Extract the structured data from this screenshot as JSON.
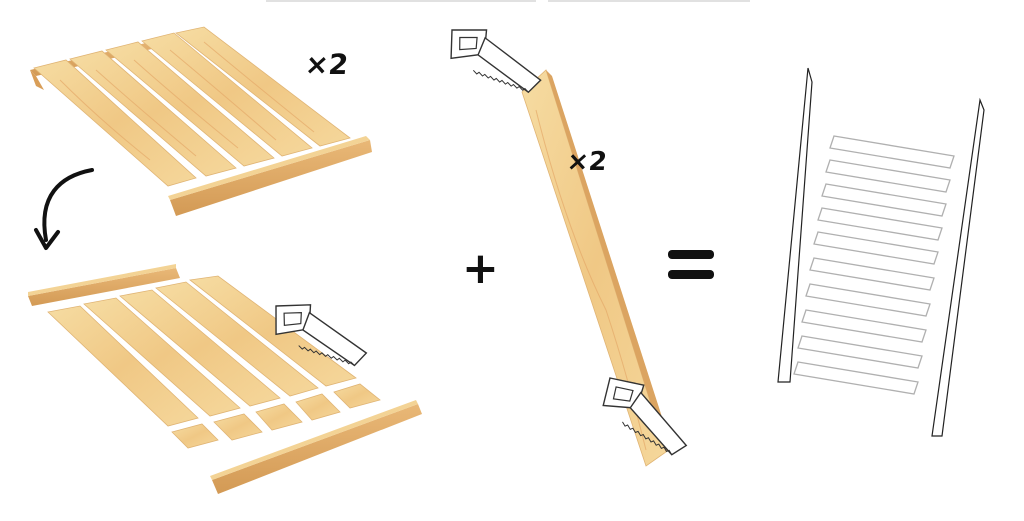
{
  "figure": {
    "multiplier_top": "×2",
    "multiplier_right": "×2",
    "plus_sign": "+",
    "equals_sign": "="
  },
  "colors": {
    "wood": "#f2cf8e",
    "wood_grain": "#e3a96a",
    "wood_edge": "#d8a35f",
    "ink": "#111111",
    "outline": "#b8b8b8"
  },
  "steps": [
    {
      "name": "slatted-bed-base"
    },
    {
      "name": "cut-apart-frame"
    },
    {
      "name": "long-plank-cut"
    },
    {
      "name": "result-ladder"
    }
  ]
}
